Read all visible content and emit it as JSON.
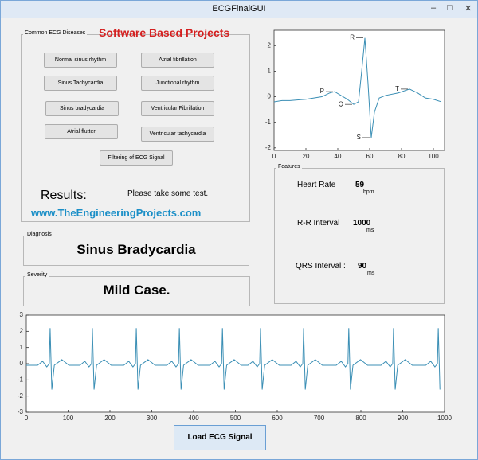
{
  "window": {
    "title": "ECGFinalGUI"
  },
  "diseases_panel": {
    "title": "Common ECG Diseases",
    "banner": "Software Based Projects",
    "buttons": [
      "Normal sinus rhythm",
      "Atrial fibrillation",
      "Sinus Tachycardia",
      "Junctional rhythm",
      "Sinus bradycardia",
      "Ventricular Fibrillation",
      "Atrial flutter",
      "Ventricular tachycardia",
      "Filtering of ECG Signal"
    ],
    "results_label": "Results:",
    "results_text": "Please take some test.",
    "website": "www.TheEngineeringProjects.com"
  },
  "diagnosis": {
    "title": "Diagnosis",
    "value": "Sinus Bradycardia"
  },
  "severity": {
    "title": "Severity",
    "value": "Mild Case."
  },
  "features": {
    "title": "Features",
    "items": [
      {
        "label": "Heart Rate :",
        "value": 59,
        "unit": "bpm"
      },
      {
        "label": "R-R Interval :",
        "value": 1000,
        "unit": "ms"
      },
      {
        "label": "QRS Interval :",
        "value": 90,
        "unit": "ms"
      }
    ]
  },
  "plots": {
    "beat": {
      "type": "line",
      "color": "#3b8fb5",
      "x": [
        0,
        5,
        10,
        20,
        30,
        35,
        38,
        42,
        46,
        50,
        53,
        55,
        57,
        59,
        61,
        63,
        66,
        70,
        78,
        85,
        90,
        95,
        100,
        105
      ],
      "y": [
        -0.2,
        -0.15,
        -0.15,
        -0.1,
        0,
        0.15,
        0.2,
        0.05,
        -0.1,
        -0.3,
        -0.2,
        1.0,
        2.3,
        0.5,
        -1.6,
        -0.6,
        -0.05,
        0.05,
        0.15,
        0.3,
        0.15,
        -0.05,
        -0.1,
        -0.2
      ],
      "xlim": [
        0,
        107
      ],
      "ylim": [
        -2.1,
        2.6
      ],
      "xticks": [
        0,
        20,
        40,
        60,
        80,
        100
      ],
      "yticks": [
        -2,
        -1,
        0,
        1,
        2
      ],
      "annotations": [
        {
          "text": "P",
          "x": 38,
          "y": 0.2
        },
        {
          "text": "Q",
          "x": 50,
          "y": -0.3
        },
        {
          "text": "R",
          "x": 57,
          "y": 2.3
        },
        {
          "text": "S",
          "x": 61,
          "y": -1.6
        },
        {
          "text": "T",
          "x": 85,
          "y": 0.3
        }
      ]
    },
    "signal": {
      "type": "line",
      "color": "#3b8fb5",
      "x": [
        0,
        27,
        39,
        49,
        55,
        57,
        61,
        67,
        85,
        102,
        128,
        140,
        150,
        156,
        158,
        162,
        168,
        186,
        203,
        233,
        245,
        255,
        261,
        263,
        267,
        273,
        291,
        308,
        336,
        348,
        358,
        364,
        366,
        370,
        376,
        394,
        411,
        439,
        451,
        461,
        467,
        469,
        473,
        479,
        497,
        514,
        530,
        542,
        552,
        558,
        560,
        564,
        570,
        588,
        605,
        633,
        645,
        655,
        661,
        663,
        667,
        673,
        691,
        708,
        741,
        753,
        763,
        769,
        771,
        775,
        781,
        799,
        816,
        848,
        860,
        870,
        876,
        878,
        882,
        888,
        906,
        923,
        955,
        967,
        977,
        983,
        985,
        989
      ],
      "y": [
        -0.1,
        -0.1,
        0.15,
        -0.2,
        0,
        2.2,
        -1.6,
        -0.1,
        0.25,
        -0.1,
        -0.1,
        0.15,
        -0.2,
        0,
        2.2,
        -1.6,
        -0.1,
        0.25,
        -0.1,
        -0.1,
        0.15,
        -0.2,
        0,
        2.2,
        -1.6,
        -0.1,
        0.25,
        -0.1,
        -0.1,
        0.15,
        -0.2,
        0,
        2.2,
        -1.6,
        -0.1,
        0.25,
        -0.1,
        -0.1,
        0.15,
        -0.2,
        0,
        2.2,
        -1.6,
        -0.1,
        0.25,
        -0.1,
        -0.1,
        0.15,
        -0.2,
        0,
        2.2,
        -1.6,
        -0.1,
        0.25,
        -0.1,
        -0.1,
        0.15,
        -0.2,
        0,
        2.2,
        -1.6,
        -0.1,
        0.25,
        -0.1,
        -0.1,
        0.15,
        -0.2,
        0,
        2.2,
        -1.6,
        -0.1,
        0.25,
        -0.1,
        -0.1,
        0.15,
        -0.2,
        0,
        2.2,
        -1.6,
        -0.1,
        0.25,
        -0.1,
        -0.1,
        0.15,
        -0.2,
        0,
        2.2,
        -1.6
      ],
      "xlim": [
        0,
        1000
      ],
      "ylim": [
        -3,
        3
      ],
      "xticks": [
        0,
        100,
        200,
        300,
        400,
        500,
        600,
        700,
        800,
        900,
        1000
      ],
      "yticks": [
        -3,
        -2,
        -1,
        0,
        1,
        2,
        3
      ]
    }
  },
  "load_button": "Load ECG Signal"
}
